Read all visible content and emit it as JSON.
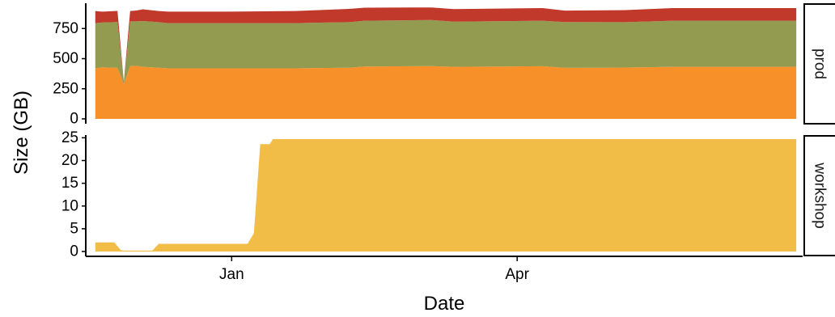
{
  "chart_data": {
    "type": "area",
    "stacked": true,
    "xlabel": "Date",
    "ylabel": "Size (GB)",
    "x_ticks": [
      {
        "label": "Jan",
        "date": "2019-01-01"
      },
      {
        "label": "Apr",
        "date": "2019-04-01"
      }
    ],
    "x_range": [
      "2018-11-16",
      "2019-06-30"
    ],
    "colors": [
      "#f8902a",
      "#939b50",
      "#c0392b",
      "#f2bd47"
    ],
    "panels": [
      {
        "strip_label": "prod",
        "ylim": [
          0,
          960
        ],
        "y_ticks": [
          0,
          250,
          500,
          750
        ],
        "dates": [
          "2018-11-19",
          "2018-11-21",
          "2018-11-26",
          "2018-11-28",
          "2018-11-30",
          "2018-12-02",
          "2018-12-04",
          "2018-12-09",
          "2018-12-12",
          "2019-01-01",
          "2019-01-21",
          "2019-02-07",
          "2019-02-12",
          "2019-03-05",
          "2019-03-12",
          "2019-04-09",
          "2019-04-16",
          "2019-05-05",
          "2019-05-20",
          "2019-06-28"
        ],
        "series": [
          {
            "values": [
              420,
              428,
              424,
              290,
              438,
              440,
              432,
              425,
              420,
              420,
              420,
              425,
              435,
              438,
              432,
              437,
              424,
              426,
              432,
              432
            ]
          },
          {
            "values": [
              375,
              372,
              380,
              20,
              372,
              370,
              380,
              378,
              375,
              375,
              375,
              378,
              380,
              383,
              375,
              378,
              380,
              377,
              383,
              383
            ]
          },
          {
            "values": [
              100,
              90,
              92,
              0,
              85,
              90,
              98,
              92,
              95,
              95,
              100,
              110,
              108,
              104,
              104,
              105,
              95,
              100,
              105,
              105
            ]
          }
        ]
      },
      {
        "strip_label": "workshop",
        "ylim": [
          0,
          25.6
        ],
        "y_ticks": [
          0,
          5,
          10,
          15,
          20,
          25
        ],
        "dates": [
          "2018-11-19",
          "2018-11-25",
          "2018-11-27",
          "2018-11-28",
          "2018-12-07",
          "2018-12-09",
          "2018-12-29",
          "2019-01-06",
          "2019-01-08",
          "2019-01-10",
          "2019-01-13",
          "2019-01-14",
          "2019-06-28"
        ],
        "series": [
          {
            "values": [
              2.0,
              2.0,
              0.3,
              0.2,
              0.2,
              1.7,
              1.7,
              1.7,
              4.0,
              23.6,
              23.6,
              24.7,
              24.7
            ]
          }
        ]
      }
    ]
  }
}
